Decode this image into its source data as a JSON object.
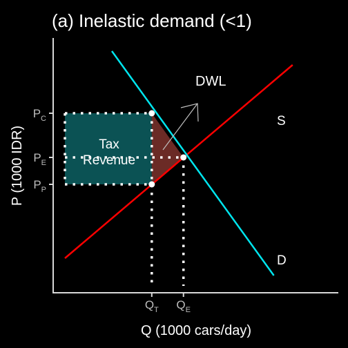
{
  "chart_data": {
    "type": "line",
    "title": "(a) Inelastic demand (<1)",
    "xlabel": "Q (1000 cars/day)",
    "ylabel": "P (1000 IDR)",
    "grid": false,
    "colors": {
      "background": "#000000",
      "axis": "#d9d9d9",
      "text": "#ffffff",
      "tick_text": "#bdbdbd",
      "supply": "#ff0000",
      "demand": "#00e5ee",
      "tax_revenue": "#0b5254",
      "dwl": "#6b2b26",
      "guides": "#ffffff",
      "arrow": "#bfbfbf"
    },
    "series": [
      {
        "name": "S",
        "points": [
          [
            0.5,
            1.0
          ],
          [
            10.2,
            6.6
          ]
        ]
      },
      {
        "name": "D",
        "points": [
          [
            2.5,
            7.0
          ],
          [
            9.4,
            0.5
          ]
        ]
      }
    ],
    "equilibrium": {
      "q": 5.55,
      "p": 3.92
    },
    "taxed_point": {
      "q": 4.2,
      "p_consumer": 5.2,
      "p_producer": 3.14
    },
    "x_ticks": [
      {
        "value": 4.2,
        "base": "Q",
        "sub": "T"
      },
      {
        "value": 5.55,
        "base": "Q",
        "sub": "E"
      }
    ],
    "y_ticks": [
      {
        "value": 5.2,
        "base": "P",
        "sub": "C"
      },
      {
        "value": 3.92,
        "base": "P",
        "sub": "E"
      },
      {
        "value": 3.14,
        "base": "P",
        "sub": "P"
      }
    ],
    "annotations": {
      "tax_revenue_line1": "Tax",
      "tax_revenue_line2": "Revenue",
      "dwl": "DWL",
      "supply_label": "S",
      "demand_label": "D"
    }
  }
}
